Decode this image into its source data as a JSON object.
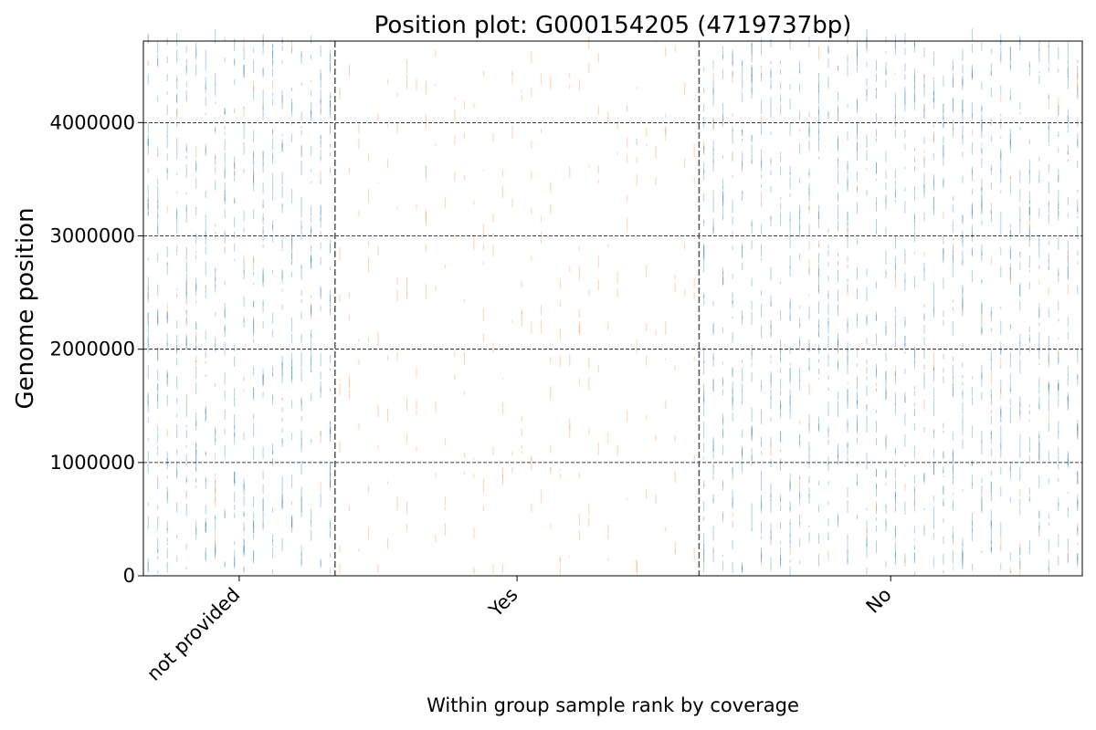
{
  "chart_data": {
    "type": "scatter",
    "title": "Position plot: G000154205 (4719737bp)",
    "xlabel": "Within group sample rank by coverage",
    "ylabel": "Genome position",
    "genome_length": 4719737,
    "ylim": [
      0,
      4719737
    ],
    "y_ticks": [
      0,
      1000000,
      2000000,
      3000000,
      4000000
    ],
    "y_tick_labels": [
      "0",
      "1000000",
      "2000000",
      "3000000",
      "4000000"
    ],
    "grid": "horizontal dashed",
    "groups": [
      {
        "label": "not provided",
        "samples": 20,
        "color": "#1f77b4"
      },
      {
        "label": "Yes",
        "samples": 38,
        "color": "#ff7f0e"
      },
      {
        "label": "No",
        "samples": 40,
        "color": "#1f77b4"
      }
    ],
    "colors": {
      "grid": "#000000",
      "divider": "#555555",
      "orange_marks": "#ff7f0e",
      "blue_marks": "#1f77b4",
      "green_marks": "#2ca02c"
    }
  }
}
